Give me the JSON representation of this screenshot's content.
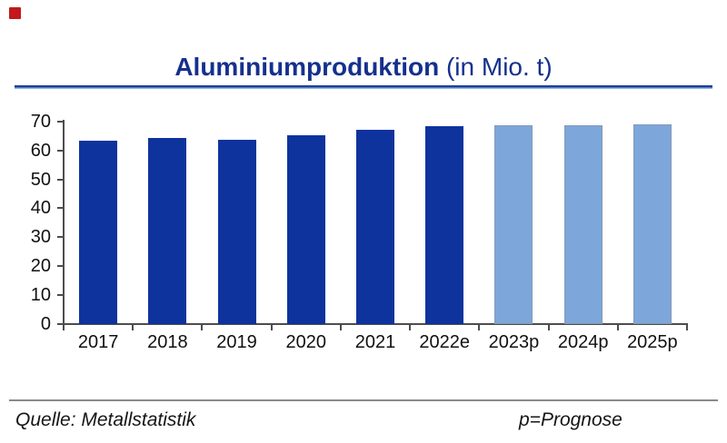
{
  "logo": {
    "name": "red-square-logo",
    "color": "#c3181c"
  },
  "header": {
    "title_bold": "Aluminiumproduktion",
    "title_rest": " (in Mio. t)",
    "title_color": "#15308d"
  },
  "chart_data": {
    "type": "bar",
    "title": "Aluminiumproduktion (in Mio. t)",
    "categories": [
      "2017",
      "2018",
      "2019",
      "2020",
      "2021",
      "2022e",
      "2023p",
      "2024p",
      "2025p"
    ],
    "values": [
      63.4,
      64.3,
      63.7,
      65.3,
      67.1,
      68.4,
      68.6,
      68.8,
      69.0
    ],
    "forecast_from_index": 6,
    "bar_color_actual": "#0f339d",
    "bar_color_forecast": "#7da6db",
    "bar_border_forecast": "#8598b6",
    "axis_color": "#4d4d4d",
    "ylim": [
      0,
      70
    ],
    "ytick_step": 10,
    "ytick_labels": [
      "0",
      "10",
      "20",
      "30",
      "40",
      "50",
      "60",
      "70"
    ],
    "grid": false,
    "legend": "none",
    "xlabel": "",
    "ylabel": ""
  },
  "footer": {
    "source": "Quelle: Metallstatistik",
    "note": "p=Prognose"
  }
}
